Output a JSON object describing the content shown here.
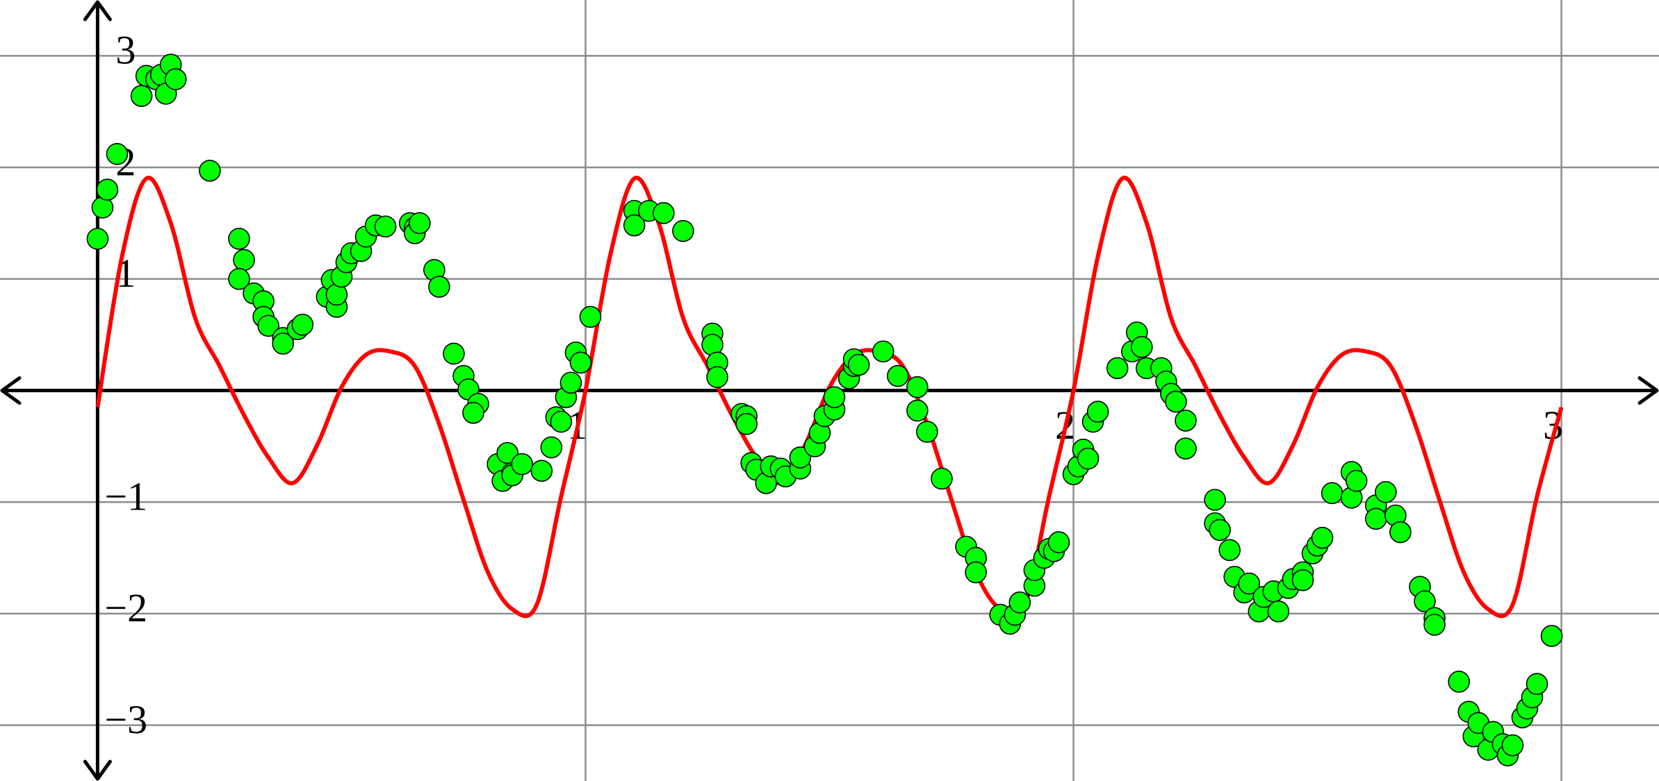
{
  "chart_data": {
    "type": "scatter",
    "grid": true,
    "xlim": [
      -0.2,
      3.2
    ],
    "ylim": [
      -3.5,
      3.5
    ],
    "xticks": [
      1,
      2,
      3
    ],
    "yticks": [
      {
        "value": -3,
        "label": "−3"
      },
      {
        "value": -2,
        "label": "−2"
      },
      {
        "value": -1,
        "label": "−1"
      },
      1,
      2,
      3
    ],
    "series": [
      {
        "type": "line",
        "color": "#ff0000",
        "x": [
          0,
          0.05,
          0.1,
          0.15,
          0.2,
          0.25,
          0.3,
          0.35,
          0.4,
          0.45,
          0.5,
          0.55,
          0.6,
          0.65,
          0.7,
          0.75,
          0.8,
          0.85,
          0.9,
          0.95,
          1,
          1.05,
          1.1,
          1.15,
          1.2,
          1.25,
          1.3,
          1.35,
          1.4,
          1.45,
          1.5,
          1.55,
          1.6,
          1.65,
          1.7,
          1.75,
          1.8,
          1.85,
          1.9,
          1.95,
          2,
          2.05,
          2.1,
          2.15,
          2.2,
          2.25,
          2.3,
          2.35,
          2.4,
          2.45,
          2.5,
          2.55,
          2.6,
          2.65,
          2.7,
          2.75,
          2.8,
          2.85,
          2.9,
          2.95,
          3
        ],
        "values": [
          -0.15,
          1.2,
          1.9,
          1.5,
          0.65,
          0.22,
          -0.22,
          -0.6,
          -0.83,
          -0.49,
          0.03,
          0.32,
          0.35,
          0.22,
          -0.3,
          -0.98,
          -1.63,
          -1.96,
          -1.92,
          -0.95,
          0,
          1.2,
          1.9,
          1.5,
          0.65,
          0.22,
          -0.22,
          -0.6,
          -0.83,
          -0.49,
          0.03,
          0.32,
          0.35,
          0.22,
          -0.3,
          -0.98,
          -1.63,
          -1.96,
          -1.92,
          -0.95,
          0,
          1.2,
          1.9,
          1.5,
          0.65,
          0.22,
          -0.22,
          -0.6,
          -0.83,
          -0.49,
          0.03,
          0.32,
          0.35,
          0.22,
          -0.3,
          -0.98,
          -1.63,
          -1.96,
          -1.92,
          -0.95,
          -0.15
        ]
      },
      {
        "type": "scatter",
        "color": "#00ff00",
        "x": [
          0,
          0.01,
          0.02,
          0.04,
          0.09,
          0.1,
          0.12,
          0.13,
          0.14,
          0.15,
          0.16,
          0.23,
          0.29,
          0.3,
          0.29,
          0.32,
          0.34,
          0.34,
          0.35,
          0.38,
          0.38,
          0.41,
          0.42,
          0.47,
          0.48,
          0.49,
          0.49,
          0.5,
          0.51,
          0.52,
          0.54,
          0.55,
          0.57,
          0.59,
          0.64,
          0.65,
          0.65,
          0.66,
          0.69,
          0.7,
          0.73,
          0.75,
          0.76,
          0.78,
          0.77,
          0.82,
          0.83,
          0.84,
          0.85,
          0.85,
          0.87,
          0.91,
          0.93,
          0.94,
          0.95,
          0.96,
          0.97,
          0.98,
          0.99,
          1.01,
          1.1,
          1.1,
          1.13,
          1.16,
          1.2,
          1.26,
          1.26,
          1.27,
          1.27,
          1.32,
          1.33,
          1.33,
          1.34,
          1.35,
          1.37,
          1.38,
          1.4,
          1.41,
          1.44,
          1.44,
          1.47,
          1.48,
          1.49,
          1.51,
          1.51,
          1.54,
          1.55,
          1.55,
          1.56,
          1.61,
          1.64,
          1.68,
          1.68,
          1.7,
          1.73,
          1.78,
          1.8,
          1.8,
          1.85,
          1.87,
          1.88,
          1.89,
          1.92,
          1.92,
          1.94,
          1.95,
          1.96,
          1.97,
          2,
          2.01,
          2.02,
          2.03,
          2.04,
          2.05,
          2.09,
          2.12,
          2.13,
          2.14,
          2.15,
          2.18,
          2.19,
          2.2,
          2.21,
          2.23,
          2.23,
          2.29,
          2.29,
          2.3,
          2.32,
          2.33,
          2.35,
          2.36,
          2.38,
          2.39,
          2.41,
          2.42,
          2.44,
          2.45,
          2.47,
          2.47,
          2.49,
          2.5,
          2.51,
          2.53,
          2.57,
          2.57,
          2.58,
          2.62,
          2.62,
          2.64,
          2.66,
          2.67,
          2.71,
          2.72,
          2.74,
          2.74,
          2.79,
          2.81,
          2.82,
          2.83,
          2.85,
          2.86,
          2.88,
          2.89,
          2.9,
          2.92,
          2.93,
          2.94,
          2.95,
          2.98
        ],
        "values": [
          1.36,
          1.64,
          1.8,
          2.12,
          2.64,
          2.82,
          2.79,
          2.83,
          2.66,
          2.92,
          2.79,
          1.97,
          1.36,
          1.17,
          1.0,
          0.87,
          0.8,
          0.66,
          0.58,
          0.47,
          0.42,
          0.55,
          0.59,
          0.84,
          0.99,
          0.75,
          0.86,
          1.02,
          1.15,
          1.23,
          1.25,
          1.38,
          1.48,
          1.47,
          1.5,
          1.46,
          1.41,
          1.5,
          1.08,
          0.93,
          0.33,
          0.13,
          0.01,
          -0.12,
          -0.2,
          -0.66,
          -0.81,
          -0.56,
          -0.74,
          -0.76,
          -0.66,
          -0.72,
          -0.51,
          -0.24,
          -0.28,
          -0.06,
          0.07,
          0.34,
          0.25,
          0.66,
          1.61,
          1.48,
          1.61,
          1.59,
          1.43,
          0.51,
          0.41,
          0.25,
          0.12,
          -0.21,
          -0.23,
          -0.3,
          -0.65,
          -0.71,
          -0.83,
          -0.68,
          -0.7,
          -0.77,
          -0.7,
          -0.6,
          -0.5,
          -0.38,
          -0.23,
          -0.17,
          -0.06,
          0.11,
          0.22,
          0.28,
          0.23,
          0.35,
          0.13,
          0.03,
          -0.18,
          -0.37,
          -0.79,
          -1.4,
          -1.5,
          -1.63,
          -2.01,
          -2.09,
          -2.01,
          -1.9,
          -1.75,
          -1.61,
          -1.5,
          -1.42,
          -1.44,
          -1.36,
          -0.75,
          -0.68,
          -0.53,
          -0.61,
          -0.28,
          -0.19,
          0.2,
          0.35,
          0.52,
          0.39,
          0.2,
          0.2,
          0.08,
          -0.03,
          -0.1,
          -0.27,
          -0.52,
          -0.98,
          -1.19,
          -1.25,
          -1.43,
          -1.67,
          -1.81,
          -1.73,
          -1.98,
          -1.85,
          -1.8,
          -1.98,
          -1.77,
          -1.69,
          -1.63,
          -1.7,
          -1.46,
          -1.39,
          -1.32,
          -0.92,
          -0.96,
          -0.73,
          -0.81,
          -1.03,
          -1.15,
          -0.91,
          -1.12,
          -1.27,
          -1.76,
          -1.89,
          -2.04,
          -2.1,
          -2.61,
          -2.88,
          -3.1,
          -2.98,
          -3.22,
          -3.06,
          -3.17,
          -3.27,
          -3.18,
          -2.93,
          -2.85,
          -2.75,
          -2.63,
          -2.2
        ]
      }
    ]
  }
}
